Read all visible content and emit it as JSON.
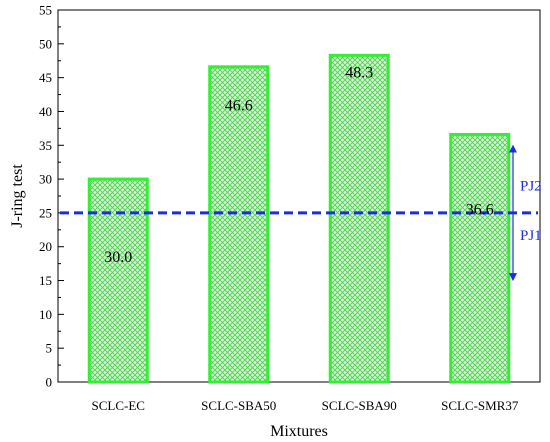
{
  "chart_data": {
    "type": "bar",
    "categories": [
      "SCLC-EC",
      "SCLC-SBA50",
      "SCLC-SBA90",
      "SCLC-SMR37"
    ],
    "values": [
      30.0,
      46.6,
      48.3,
      36.6
    ],
    "value_labels": [
      "30.0",
      "46.6",
      "48.3",
      "36.6"
    ],
    "xlabel": "Mixtures",
    "ylabel": "J-ring test",
    "ylim": [
      0,
      55
    ],
    "yticks": [
      0,
      5,
      10,
      15,
      20,
      25,
      30,
      35,
      40,
      45,
      50,
      55
    ],
    "grid": false,
    "bar_style": {
      "edge_color": "#33ee33",
      "fill_color": "#b8f0b8",
      "hatch": "crosshatch"
    },
    "reference_line": {
      "y": 25,
      "color": "#1a2ee0",
      "style": "dashed"
    },
    "annotations": [
      {
        "label": "PJ2",
        "direction": "up",
        "color": "#1a2ee0"
      },
      {
        "label": "PJ1",
        "direction": "down",
        "color": "#1a2ee0"
      }
    ]
  }
}
